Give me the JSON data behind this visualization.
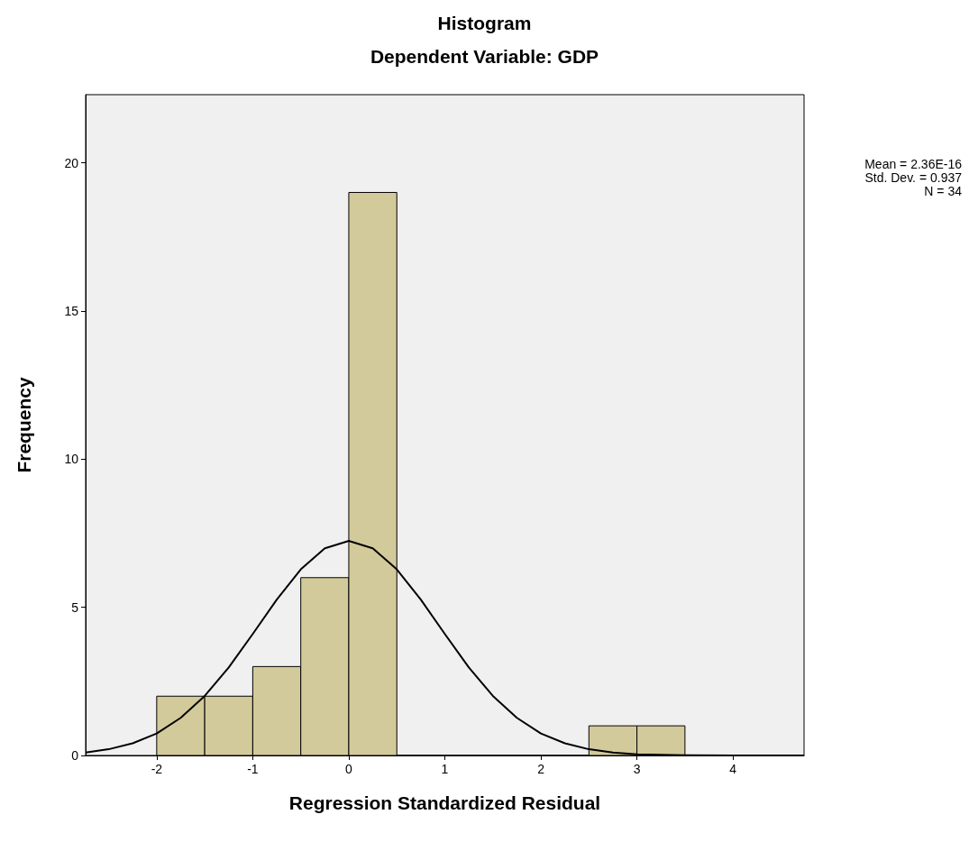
{
  "chart_data": {
    "type": "histogram",
    "title": "Histogram",
    "subtitle": "Dependent Variable: GDP",
    "xlabel": "Regression Standardized Residual",
    "ylabel": "Frequency",
    "annotations": [
      "Mean = 2.36E-16",
      "Std. Dev. = 0.937",
      "N = 34"
    ],
    "bins": [
      -2,
      -1.5,
      -1,
      -0.5,
      0,
      0.5,
      1,
      1.5,
      2,
      2.5,
      3,
      3.5
    ],
    "series": [
      {
        "color": "#d3ca9b",
        "values": [
          2,
          2,
          3,
          6,
          19,
          0,
          0,
          0,
          0,
          1,
          1
        ]
      },
      {
        "type": "line",
        "color": "#000000",
        "x": [
          -2.74,
          -2.5,
          -2.25,
          -2,
          -1.75,
          -1.5,
          -1.25,
          -1,
          -0.75,
          -0.5,
          -0.25,
          0,
          0.25,
          0.5,
          0.75,
          1,
          1.25,
          1.5,
          1.75,
          2,
          2.25,
          2.5,
          2.75,
          3,
          3.5,
          4,
          4.74
        ],
        "values": [
          0.1,
          0.21,
          0.41,
          0.74,
          1.27,
          2.01,
          2.97,
          4.1,
          5.26,
          6.28,
          6.99,
          7.24,
          6.99,
          6.28,
          5.26,
          4.1,
          2.97,
          2.01,
          1.27,
          0.74,
          0.41,
          0.21,
          0.1,
          0.04,
          0.01,
          0,
          0
        ]
      }
    ],
    "xlim": [
      -2.74,
      4.74
    ],
    "xticks": [
      -2,
      -1,
      0,
      1,
      2,
      3,
      4
    ],
    "ylim": [
      0,
      22.3
    ],
    "yticks": [
      0,
      5,
      10,
      15,
      20
    ],
    "grid": false,
    "marker": "none",
    "line_style": "solid"
  }
}
